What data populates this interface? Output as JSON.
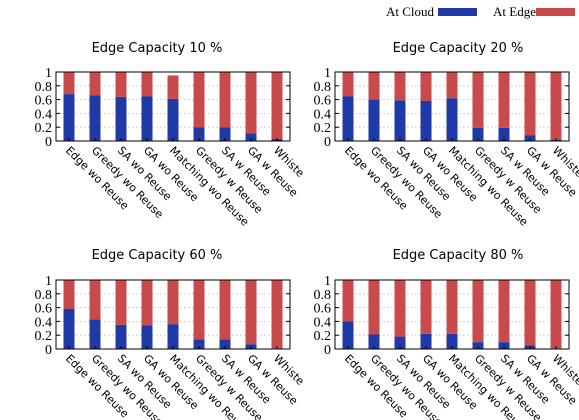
{
  "legend": {
    "entries": [
      {
        "label": "At Cloud",
        "color": "#1f3aa6"
      },
      {
        "label": "At Edge",
        "color": "#c94a4a"
      }
    ],
    "placement": "top-right"
  },
  "colors": {
    "cloud": "#1f3aa6",
    "edge": "#c94a4a",
    "grid": "#bbbbbb",
    "axis": "#000000"
  },
  "chart_data": [
    {
      "type": "bar",
      "stacked": true,
      "title": "Edge Capacity 10 %",
      "categories": [
        "Edge wo Reuse",
        "Greedy wo Reuse",
        "SA wo Reuse",
        "GA wo Reuse",
        "Matching wo Reuse",
        "Greedy w Reuse",
        "SA w Reuse",
        "GA w Reuse",
        "Whiste"
      ],
      "series": [
        {
          "name": "At Cloud",
          "values": [
            0.68,
            0.66,
            0.64,
            0.65,
            0.61,
            0.2,
            0.2,
            0.11,
            0.03
          ]
        },
        {
          "name": "At Edge",
          "values": [
            0.32,
            0.34,
            0.36,
            0.35,
            0.34,
            0.8,
            0.8,
            0.89,
            0.97
          ]
        }
      ],
      "yticks": [
        "0",
        "0.2",
        "0.4",
        "0.6",
        "0.8",
        "1"
      ],
      "ylim": [
        0,
        1
      ],
      "grid": true
    },
    {
      "type": "bar",
      "stacked": true,
      "title": "Edge Capacity 20 %",
      "categories": [
        "Edge wo Reuse",
        "Greedy wo Reuse",
        "SA wo Reuse",
        "GA wo Reuse",
        "Matching wo Reuse",
        "Greedy w Reuse",
        "SA w Reuse",
        "GA w Reuse",
        "Whiste"
      ],
      "series": [
        {
          "name": "At Cloud",
          "values": [
            0.65,
            0.6,
            0.59,
            0.58,
            0.62,
            0.19,
            0.19,
            0.08,
            0.02
          ]
        },
        {
          "name": "At Edge",
          "values": [
            0.35,
            0.4,
            0.41,
            0.42,
            0.38,
            0.81,
            0.81,
            0.92,
            0.98
          ]
        }
      ],
      "yticks": [
        "0",
        "0.2",
        "0.4",
        "0.6",
        "0.8",
        "1"
      ],
      "ylim": [
        0,
        1
      ],
      "grid": true
    },
    {
      "type": "bar",
      "stacked": true,
      "title": "Edge Capacity 60 %",
      "categories": [
        "Edge wo Reuse",
        "Greedy wo Reuse",
        "SA wo Reuse",
        "GA wo Reuse",
        "Matching wo Reuse",
        "Greedy w Reuse",
        "SA w Reuse",
        "GA w Reuse",
        "Whiste"
      ],
      "series": [
        {
          "name": "At Cloud",
          "values": [
            0.58,
            0.43,
            0.35,
            0.34,
            0.36,
            0.14,
            0.14,
            0.07,
            0.01
          ]
        },
        {
          "name": "At Edge",
          "values": [
            0.42,
            0.57,
            0.65,
            0.66,
            0.64,
            0.86,
            0.86,
            0.93,
            0.99
          ]
        }
      ],
      "yticks": [
        "0",
        "0.2",
        "0.4",
        "0.6",
        "0.8",
        "1"
      ],
      "ylim": [
        0,
        1
      ],
      "grid": true
    },
    {
      "type": "bar",
      "stacked": true,
      "title": "Edge Capacity 80 %",
      "categories": [
        "Edge wo Reuse",
        "Greedy wo Reuse",
        "SA wo Reuse",
        "GA wo Reuse",
        "Matching wo Reuse",
        "Greedy w Reuse",
        "SA w Reuse",
        "GA w Reuse",
        "Whiste"
      ],
      "series": [
        {
          "name": "At Cloud",
          "values": [
            0.4,
            0.21,
            0.18,
            0.22,
            0.22,
            0.1,
            0.1,
            0.05,
            0.01
          ]
        },
        {
          "name": "At Edge",
          "values": [
            0.6,
            0.79,
            0.82,
            0.78,
            0.78,
            0.9,
            0.9,
            0.95,
            0.99
          ]
        }
      ],
      "yticks": [
        "0",
        "0.2",
        "0.4",
        "0.6",
        "0.8",
        "1"
      ],
      "ylim": [
        0,
        1
      ],
      "grid": true
    }
  ]
}
